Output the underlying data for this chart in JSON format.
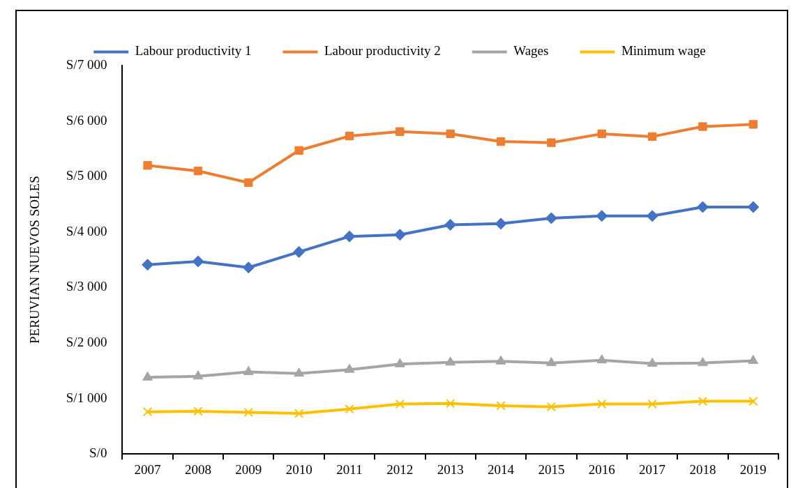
{
  "chart_data": {
    "type": "line",
    "ylabel": "PERUVIAN NUEVOS SOLES",
    "categories": [
      "2007",
      "2008",
      "2009",
      "2010",
      "2011",
      "2012",
      "2013",
      "2014",
      "2015",
      "2016",
      "2017",
      "2018",
      "2019"
    ],
    "series": [
      {
        "name": "Labour productivity 1",
        "color": "#4472c4",
        "marker": "diamond",
        "values": [
          3410,
          3470,
          3360,
          3640,
          3920,
          3950,
          4130,
          4150,
          4250,
          4290,
          4290,
          4450,
          4450
        ]
      },
      {
        "name": "Labour productivity 2",
        "color": "#ed7d31",
        "marker": "square",
        "values": [
          5200,
          5100,
          4890,
          5470,
          5730,
          5810,
          5770,
          5630,
          5610,
          5770,
          5720,
          5900,
          5940
        ]
      },
      {
        "name": "Wages",
        "color": "#a5a5a5",
        "marker": "triangle",
        "values": [
          1380,
          1400,
          1480,
          1450,
          1520,
          1620,
          1650,
          1670,
          1640,
          1690,
          1630,
          1640,
          1680
        ]
      },
      {
        "name": "Minimum wage",
        "color": "#ffc000",
        "marker": "cross",
        "values": [
          760,
          770,
          750,
          730,
          810,
          900,
          910,
          870,
          850,
          900,
          900,
          950,
          950
        ]
      }
    ],
    "ylim": [
      0,
      7000
    ],
    "yticks": [
      {
        "value": 0,
        "label": "S/0"
      },
      {
        "value": 1000,
        "label": "S/1 000"
      },
      {
        "value": 2000,
        "label": "S/2 000"
      },
      {
        "value": 3000,
        "label": "S/3 000"
      },
      {
        "value": 4000,
        "label": "S/4 000"
      },
      {
        "value": 5000,
        "label": "S/5 000"
      },
      {
        "value": 6000,
        "label": "S/6 000"
      },
      {
        "value": 7000,
        "label": "S/7 000"
      }
    ],
    "grid": false,
    "legend": "top"
  }
}
